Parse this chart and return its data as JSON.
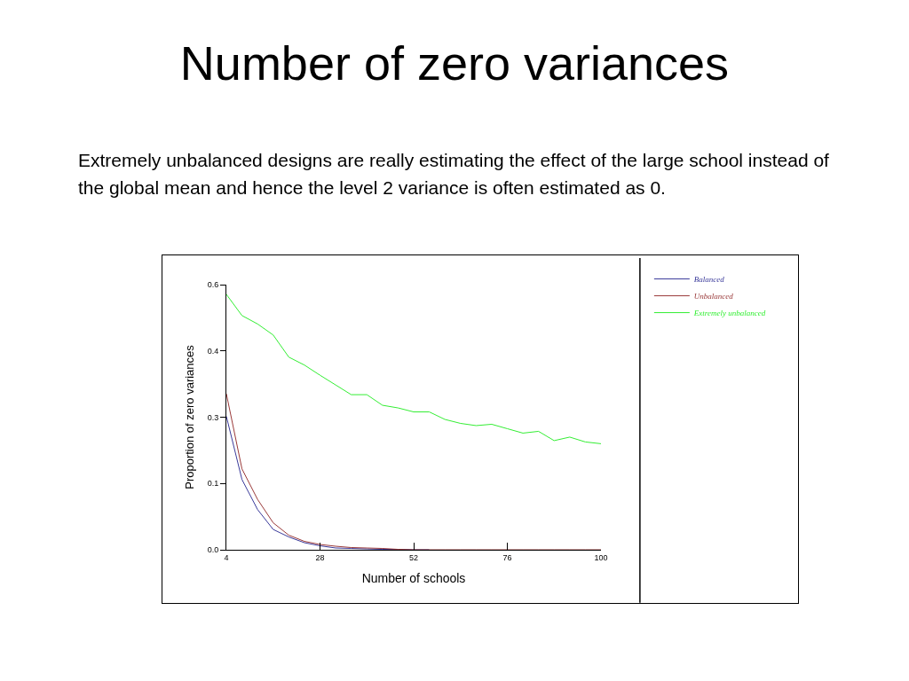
{
  "chart_data": {
    "type": "line",
    "title": "Number of zero variances",
    "subtitle": "Extremely unbalanced designs are really estimating the effect of the large school instead of the global mean and hence the level 2 variance is often estimated as 0.",
    "xlabel": "Number of schools",
    "ylabel": "Proportion of zero variances",
    "x": [
      4,
      8,
      12,
      16,
      20,
      24,
      28,
      32,
      36,
      40,
      44,
      48,
      52,
      56,
      60,
      64,
      68,
      72,
      76,
      80,
      84,
      88,
      92,
      96,
      100
    ],
    "series": [
      {
        "name": "Balanced",
        "color": "#3a3a9a",
        "values": [
          0.302,
          0.159,
          0.091,
          0.046,
          0.029,
          0.016,
          0.009,
          0.004,
          0.003,
          0.002,
          0.001,
          0.001,
          0.0,
          0.0,
          null,
          null,
          null,
          null,
          null,
          null,
          null,
          null,
          null,
          null,
          null
        ]
      },
      {
        "name": "Unbalanced",
        "color": "#9a3a3a",
        "values": [
          0.353,
          0.183,
          0.114,
          0.061,
          0.033,
          0.019,
          0.012,
          0.008,
          0.005,
          0.004,
          0.003,
          0.001,
          0.0,
          0.0,
          0.0,
          0.0,
          0.0,
          0.0,
          0.0,
          0.0,
          0.0,
          0.0,
          0.0,
          0.0,
          0.0
        ]
      },
      {
        "name": "Extremely unbalanced",
        "color": "#33ee33",
        "values": [
          0.578,
          0.53,
          0.511,
          0.486,
          0.436,
          0.418,
          0.395,
          0.373,
          0.351,
          0.351,
          0.327,
          0.321,
          0.312,
          0.312,
          0.295,
          0.286,
          0.281,
          0.284,
          0.274,
          0.264,
          0.268,
          0.247,
          0.255,
          0.244,
          0.24
        ]
      }
    ],
    "xlim": [
      4,
      100
    ],
    "xticks": [
      4,
      28,
      52,
      76,
      100
    ],
    "ylim": [
      0,
      0.6
    ],
    "yticks": [
      {
        "value": 0,
        "label": "0.0"
      },
      {
        "value": 0.15,
        "label": "0.1"
      },
      0.3,
      {
        "value": 0.45,
        "label": "0.4"
      },
      0.6
    ],
    "grid": false,
    "legend": "top right",
    "marker": "none",
    "line_style": "solid"
  }
}
